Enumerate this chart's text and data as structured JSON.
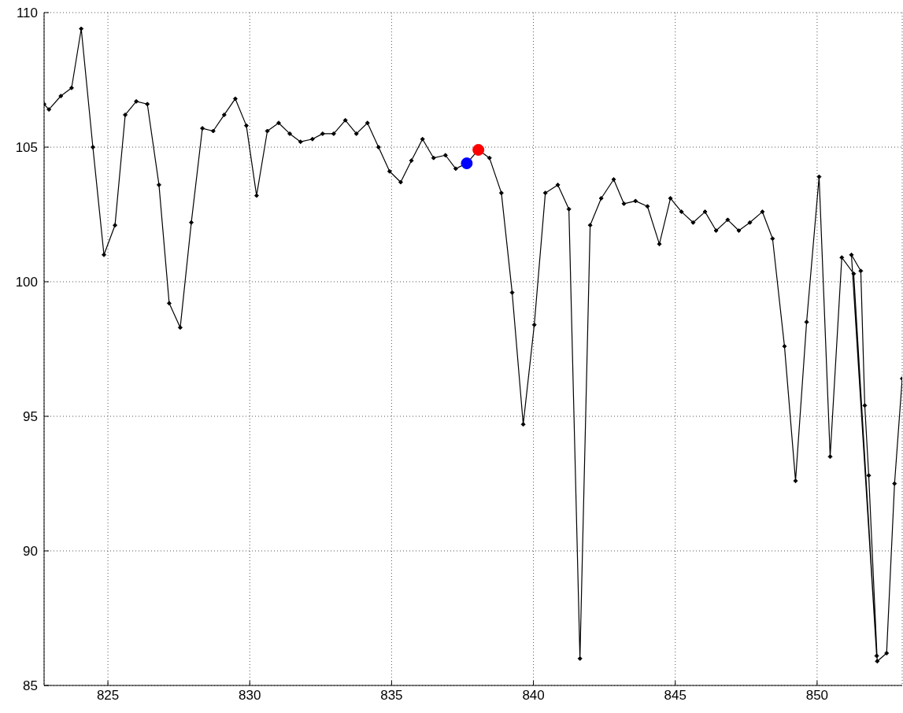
{
  "chart_data": {
    "type": "line",
    "xlim": [
      822.75,
      853
    ],
    "xticks": [
      825,
      830,
      835,
      840,
      845,
      850
    ],
    "ylim": [
      85,
      110
    ],
    "yticks": [
      85,
      90,
      95,
      100,
      105,
      110
    ],
    "grid": true,
    "series": [
      {
        "color": "#000000",
        "marker": "diamond",
        "x": [
          822.75,
          822.92,
          823.34,
          823.72,
          824.06,
          824.47,
          824.86,
          825.25,
          825.61,
          826.0,
          826.39,
          826.8,
          827.16,
          827.55,
          827.94,
          828.33,
          828.71,
          829.1,
          829.49,
          829.88,
          830.24,
          830.62,
          831.02,
          831.41,
          831.79,
          832.21,
          832.57,
          832.96,
          833.37,
          833.76,
          834.15,
          834.54,
          834.93,
          835.32,
          835.7,
          836.09,
          836.48,
          836.9,
          837.26,
          837.65,
          838.06,
          838.45,
          838.87,
          839.25,
          839.64,
          840.03,
          840.42,
          840.86,
          841.25,
          841.64,
          842.0,
          842.39,
          842.83,
          843.19,
          843.6,
          844.02,
          844.44,
          844.83,
          845.22,
          845.63,
          846.05,
          846.44,
          846.85,
          847.24,
          847.63,
          848.07,
          848.43,
          848.85,
          849.24,
          849.63,
          850.07,
          850.46,
          850.87,
          851.29,
          852.1,
          851.21,
          851.54,
          851.68,
          851.82,
          852.12,
          852.45,
          852.73,
          853.0
        ],
        "values": [
          106.6,
          106.4,
          106.9,
          107.2,
          109.4,
          105.0,
          101.0,
          102.1,
          106.2,
          106.7,
          106.6,
          103.6,
          99.2,
          98.3,
          102.2,
          105.7,
          105.6,
          106.2,
          106.8,
          105.8,
          103.2,
          105.6,
          105.9,
          105.5,
          105.2,
          105.3,
          105.5,
          105.5,
          106.0,
          105.5,
          105.9,
          105.0,
          104.1,
          103.7,
          104.5,
          105.3,
          104.6,
          104.7,
          104.2,
          104.4,
          104.9,
          104.6,
          103.3,
          99.6,
          94.7,
          98.4,
          103.3,
          103.6,
          102.7,
          86.0,
          102.1,
          103.1,
          103.8,
          102.9,
          103.0,
          102.8,
          101.4,
          103.1,
          102.6,
          102.2,
          102.6,
          101.9,
          102.3,
          101.9,
          102.2,
          102.6,
          101.6,
          97.6,
          92.6,
          98.5,
          103.9,
          93.5,
          100.9,
          100.3,
          86.1,
          101.0,
          100.4,
          95.4,
          92.8,
          85.9,
          86.2,
          92.5,
          96.4
        ]
      },
      {
        "type": "scatter",
        "color": "#0000ff",
        "marker": "circle",
        "x": [
          837.65
        ],
        "values": [
          104.4
        ]
      },
      {
        "type": "scatter",
        "color": "#ff0000",
        "marker": "circle",
        "x": [
          838.06
        ],
        "values": [
          104.9
        ]
      }
    ]
  }
}
